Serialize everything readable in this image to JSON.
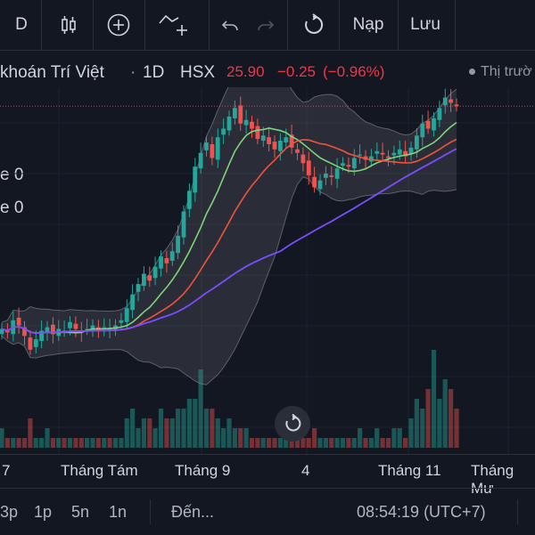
{
  "toolbar": {
    "symbol_letter": "D",
    "undo_icon": "undo-icon",
    "redo_icon": "redo-icon",
    "reload_icon": "reload-icon",
    "load_label": "Nạp",
    "save_label": "Lưu"
  },
  "legend": {
    "name": "khoán Trí Việt",
    "dot": "·",
    "interval": "1D",
    "exchange": "HSX",
    "price": "25.90",
    "change": "−0.25",
    "change_pct": "(−0.96%)",
    "market_status": "Thị trườ"
  },
  "side_labels": [
    "e 0",
    "e 0"
  ],
  "time_axis": {
    "labels": [
      "7",
      "Tháng Tám",
      "Tháng 9",
      "4",
      "Tháng 11",
      "Tháng Mư"
    ]
  },
  "bottom_bar": {
    "ranges": [
      "3p",
      "1p",
      "5n",
      "1n"
    ],
    "goto_label": "Đến...",
    "clock": "08:54:19 (UTC+7)"
  },
  "colors": {
    "background": "#131722",
    "up": "#26a69a",
    "down": "#ef5350",
    "ma_fast": "#7ed47a",
    "ma_mid": "#f0533c",
    "ma_slow": "#7c4dff",
    "band": "#9598a1"
  },
  "chart_data": {
    "type": "candlestick",
    "title": "khoán Trí Việt · 1D · HSX",
    "last_price": 25.9,
    "x_labels": [
      "7",
      "Tháng Tám",
      "Tháng 9",
      "4",
      "Tháng 11",
      "Tháng Mư"
    ],
    "close_series": [
      13.0,
      12.8,
      13.5,
      13.2,
      12.6,
      11.8,
      12.4,
      12.9,
      13.1,
      12.7,
      13.0,
      12.9,
      13.4,
      13.0,
      12.8,
      13.0,
      13.2,
      12.9,
      13.1,
      13.0,
      13.2,
      13.5,
      14.2,
      15.0,
      15.6,
      16.2,
      15.8,
      16.6,
      17.2,
      16.8,
      17.5,
      18.4,
      19.8,
      21.0,
      22.4,
      23.2,
      23.8,
      22.9,
      24.1,
      24.6,
      25.3,
      25.8,
      24.9,
      25.1,
      24.6,
      24.0,
      24.2,
      23.7,
      23.4,
      23.9,
      24.1,
      23.5,
      23.2,
      22.6,
      21.9,
      21.2,
      21.6,
      22.0,
      21.8,
      22.3,
      22.6,
      22.4,
      22.9,
      23.1,
      22.8,
      23.0,
      23.3,
      23.1,
      22.9,
      23.2,
      23.4,
      23.0,
      23.5,
      24.2,
      24.9,
      24.6,
      25.2,
      25.8,
      26.4,
      26.1,
      25.9
    ],
    "volume_series": [
      2,
      1,
      1,
      1,
      1,
      3,
      1,
      1,
      2,
      1,
      1,
      1,
      1,
      1,
      1,
      1,
      1,
      1,
      1,
      1,
      1,
      1,
      3,
      4,
      2,
      3,
      3,
      2,
      4,
      3,
      3,
      4,
      4,
      5,
      5,
      8,
      4,
      4,
      3,
      2,
      3,
      2,
      2,
      2,
      1,
      1,
      1,
      1,
      1,
      1,
      1,
      1,
      1,
      1,
      1,
      2,
      1,
      1,
      1,
      1,
      1,
      1,
      1,
      2,
      1,
      1,
      2,
      1,
      1,
      2,
      2,
      1,
      3,
      5,
      4,
      6,
      10,
      5,
      7,
      6,
      4
    ],
    "series": [
      {
        "name": "",
        "type": "ma_fast"
      },
      {
        "name": "",
        "type": "ma_mid"
      },
      {
        "name": "",
        "type": "ma_slow"
      }
    ]
  }
}
